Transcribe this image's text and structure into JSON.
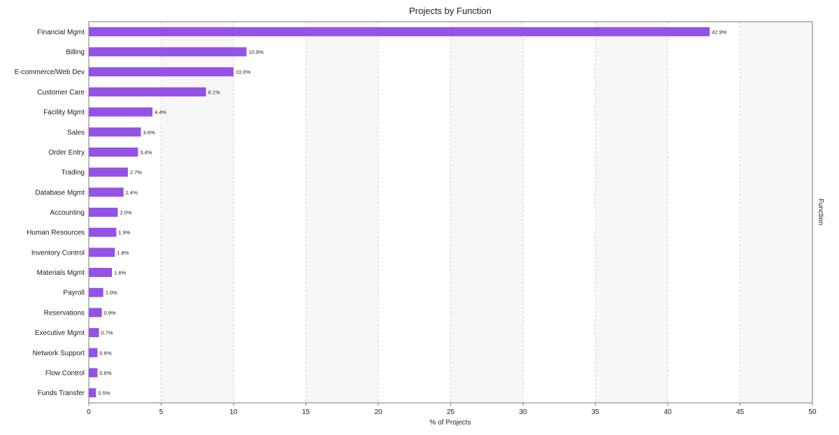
{
  "chart_data": {
    "type": "bar",
    "orientation": "horizontal",
    "title": "Projects by Function",
    "xlabel": "% of Projects",
    "ylabel": "Function",
    "xlim": [
      0,
      50
    ],
    "xticks": [
      0,
      5,
      10,
      15,
      20,
      25,
      30,
      35,
      40,
      45,
      50
    ],
    "grid": "vertical dashed",
    "bar_color": "#9452e6",
    "categories": [
      "Financial Mgmt",
      "Billing",
      "E-commerce/Web Dev",
      "Customer Care",
      "Facility Mgmt",
      "Sales",
      "Order Entry",
      "Trading",
      "Database Mgmt",
      "Accounting",
      "Human Resources",
      "Inventory Control",
      "Materials Mgmt",
      "Payroll",
      "Reservations",
      "Executive Mgmt",
      "Network Support",
      "Flow Control",
      "Funds Transfer"
    ],
    "values": [
      42.9,
      10.9,
      10.0,
      8.1,
      4.4,
      3.6,
      3.4,
      2.7,
      2.4,
      2.0,
      1.9,
      1.8,
      1.6,
      1.0,
      0.9,
      0.7,
      0.6,
      0.6,
      0.5
    ],
    "data_labels": [
      "42.9%",
      "10.9%",
      "10.0%",
      "8.1%",
      "4.4%",
      "3.6%",
      "3.4%",
      "2.7%",
      "2.4%",
      "2.0%",
      "1.9%",
      "1.8%",
      "1.6%",
      "1.0%",
      "0.9%",
      "0.7%",
      "0.6%",
      "0.6%",
      "0.5%"
    ]
  }
}
